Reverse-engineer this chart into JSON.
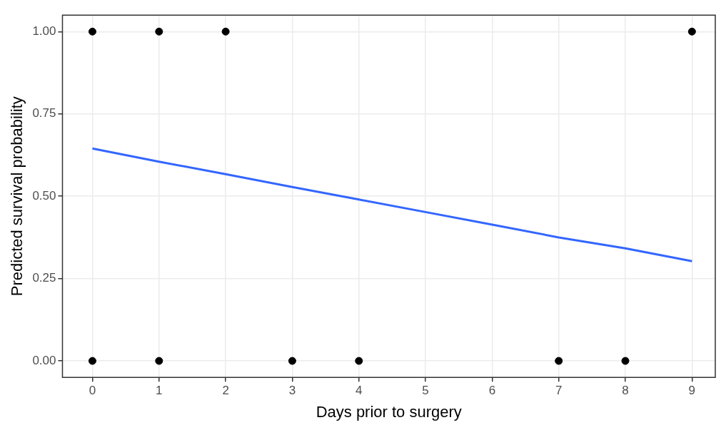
{
  "chart_data": {
    "type": "scatter",
    "xlabel": "Days prior to surgery",
    "ylabel": "Predicted survival probability",
    "xlim": [
      -0.45,
      9.35
    ],
    "ylim": [
      -0.05,
      1.05
    ],
    "xticks": [
      0,
      1,
      2,
      3,
      4,
      5,
      6,
      7,
      8,
      9
    ],
    "yticks": [
      {
        "value": 0,
        "label": "0.00"
      },
      {
        "value": 0.25,
        "label": "0.25"
      },
      {
        "value": 0.5,
        "label": "0.50"
      },
      {
        "value": 0.75,
        "label": "0.75"
      },
      {
        "value": 1,
        "label": "1.00"
      }
    ],
    "grid": true,
    "legend": false,
    "series": [
      {
        "type": "scatter",
        "marker": "circle",
        "color": "#000000",
        "x": [
          0,
          1,
          2,
          9,
          0,
          1,
          3,
          4,
          7,
          8
        ],
        "values": [
          1,
          1,
          1,
          1,
          0,
          0,
          0,
          0,
          0,
          0
        ]
      },
      {
        "type": "line",
        "color": "#3366ff",
        "x": [
          0,
          1,
          2,
          3,
          4,
          5,
          6,
          7,
          8,
          9
        ],
        "values": [
          0.645,
          0.605,
          0.567,
          0.528,
          0.49,
          0.452,
          0.414,
          0.375,
          0.342,
          0.303
        ]
      }
    ]
  }
}
